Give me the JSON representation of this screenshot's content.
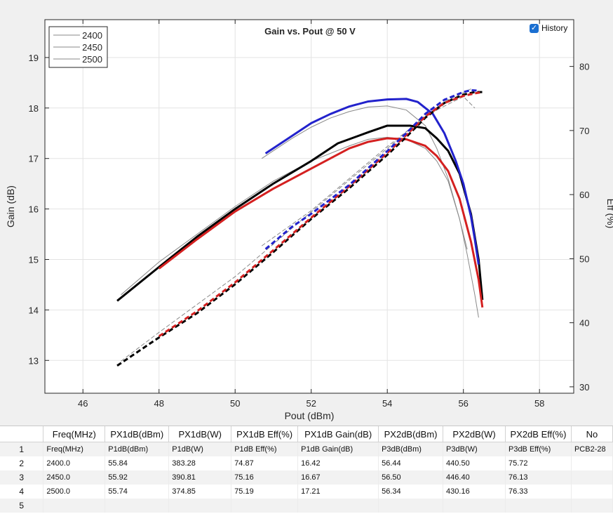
{
  "history": {
    "label": "History",
    "checked": true
  },
  "chart_data": {
    "type": "line",
    "title": "Gain vs. Pout @ 50 V",
    "xlabel": "Pout (dBm)",
    "ylabel": "Gain (dB)",
    "y2label": "Eff (%)",
    "xlim": [
      45,
      58.9
    ],
    "ylim": [
      12.35,
      19.75
    ],
    "y2lim": [
      29,
      87.3
    ],
    "xticks": [
      46,
      48,
      50,
      52,
      54,
      56,
      58
    ],
    "yticks": [
      13,
      14,
      15,
      16,
      17,
      18,
      19
    ],
    "y2ticks": [
      30,
      40,
      50,
      60,
      70,
      80
    ],
    "legend": {
      "position": "top-left",
      "entries": [
        "2400",
        "2450",
        "2500"
      ]
    },
    "grid": true,
    "colors": {
      "2400": "#000000",
      "2450": "#d42020",
      "2500": "#2222cc",
      "history": "#888888"
    },
    "series": [
      {
        "name": "2400",
        "axis": "left",
        "style": "solid",
        "x": [
          46.9,
          48.0,
          49.0,
          50.0,
          51.0,
          52.0,
          52.7,
          53.5,
          54.0,
          54.6,
          55.0,
          55.3,
          55.6,
          55.9,
          56.2,
          56.4,
          56.5
        ],
        "y": [
          14.18,
          14.85,
          15.45,
          16.0,
          16.5,
          16.95,
          17.3,
          17.52,
          17.65,
          17.65,
          17.6,
          17.4,
          17.15,
          16.7,
          15.9,
          15.0,
          14.2
        ]
      },
      {
        "name": "2450",
        "axis": "left",
        "style": "solid",
        "x": [
          48.0,
          49.0,
          50.0,
          51.0,
          52.0,
          53.0,
          53.5,
          54.0,
          54.5,
          55.0,
          55.3,
          55.6,
          55.9,
          56.2,
          56.4,
          56.5
        ],
        "y": [
          14.82,
          15.4,
          15.95,
          16.4,
          16.8,
          17.2,
          17.33,
          17.4,
          17.38,
          17.25,
          17.05,
          16.75,
          16.2,
          15.35,
          14.6,
          14.05
        ]
      },
      {
        "name": "2500",
        "axis": "left",
        "style": "solid",
        "x": [
          50.8,
          51.5,
          52.0,
          52.5,
          53.0,
          53.5,
          54.0,
          54.5,
          54.8,
          55.2,
          55.5,
          55.8,
          56.0,
          56.2,
          56.3,
          56.4
        ],
        "y": [
          17.1,
          17.45,
          17.7,
          17.88,
          18.03,
          18.13,
          18.17,
          18.18,
          18.12,
          17.88,
          17.5,
          16.95,
          16.5,
          15.85,
          15.4,
          14.9
        ]
      },
      {
        "name": "2400 Eff",
        "axis": "right",
        "style": "dashed",
        "x": [
          46.9,
          48.0,
          49.0,
          50.0,
          51.0,
          52.0,
          53.0,
          54.0,
          54.5,
          55.0,
          55.5,
          56.0,
          56.3,
          56.5
        ],
        "y": [
          33.3,
          37.7,
          41.5,
          46.0,
          51.0,
          56.2,
          61.0,
          66.2,
          69.0,
          72.0,
          74.3,
          75.6,
          76.0,
          76.0
        ]
      },
      {
        "name": "2450 Eff",
        "axis": "right",
        "style": "dashed",
        "x": [
          48.0,
          49.0,
          50.0,
          51.0,
          52.0,
          53.0,
          54.0,
          54.5,
          55.0,
          55.5,
          56.0,
          56.3,
          56.5
        ],
        "y": [
          37.9,
          41.8,
          46.3,
          51.3,
          56.4,
          61.3,
          66.5,
          69.3,
          72.2,
          74.3,
          75.4,
          75.8,
          76.0
        ]
      },
      {
        "name": "2500 Eff",
        "axis": "right",
        "style": "dashed",
        "x": [
          50.8,
          51.5,
          52.0,
          53.0,
          54.0,
          54.5,
          55.0,
          55.5,
          56.0,
          56.2,
          56.4
        ],
        "y": [
          51.5,
          55.0,
          57.0,
          61.5,
          66.8,
          69.6,
          72.6,
          74.8,
          76.0,
          76.3,
          76.2
        ]
      }
    ],
    "history_series": [
      {
        "axis": "left",
        "x": [
          47.0,
          48.0,
          49.0,
          50.0,
          51.0,
          52.0,
          53.0,
          53.5,
          54.0,
          54.5,
          55.0,
          55.3,
          55.6,
          55.9,
          56.1,
          56.3,
          56.4
        ],
        "y": [
          14.3,
          14.95,
          15.5,
          16.05,
          16.55,
          16.95,
          17.25,
          17.38,
          17.42,
          17.38,
          17.2,
          16.95,
          16.55,
          15.8,
          15.1,
          14.3,
          13.85
        ]
      },
      {
        "axis": "left",
        "x": [
          50.7,
          51.5,
          52.0,
          52.5,
          53.0,
          53.5,
          54.0,
          54.5,
          55.0,
          55.3,
          55.6,
          55.9,
          56.1
        ],
        "y": [
          17.0,
          17.4,
          17.62,
          17.8,
          17.93,
          18.02,
          18.04,
          17.96,
          17.65,
          17.2,
          16.6,
          15.8,
          15.2
        ]
      },
      {
        "axis": "right",
        "dashed": true,
        "x": [
          47.0,
          48.0,
          50.0,
          52.0,
          54.0,
          55.0,
          56.0,
          56.3
        ],
        "y": [
          34.0,
          38.5,
          47.2,
          57.3,
          67.2,
          72.3,
          75.3,
          73.5
        ]
      },
      {
        "axis": "right",
        "dashed": true,
        "x": [
          50.7,
          52.0,
          54.0,
          55.5,
          56.2
        ],
        "y": [
          52.0,
          57.5,
          67.5,
          74.5,
          76.5
        ]
      }
    ]
  },
  "table": {
    "columns": [
      "",
      "Freq(MHz)",
      "PX1dB(dBm)",
      "PX1dB(W)",
      "PX1dB Eff(%)",
      "PX1dB Gain(dB)",
      "PX2dB(dBm)",
      "PX2dB(W)",
      "PX2dB Eff(%)",
      "No"
    ],
    "rows": [
      [
        "1",
        "Freq(MHz)",
        "P1dB(dBm)",
        "P1dB(W)",
        "P1dB Eff(%)",
        "P1dB Gain(dB)",
        "P3dB(dBm)",
        "P3dB(W)",
        "P3dB Eff(%)",
        "PCB2-28"
      ],
      [
        "2",
        "2400.0",
        "55.84",
        "383.28",
        "74.87",
        "16.42",
        "56.44",
        "440.50",
        "75.72",
        ""
      ],
      [
        "3",
        "2450.0",
        "55.92",
        "390.81",
        "75.16",
        "16.67",
        "56.50",
        "446.40",
        "76.13",
        ""
      ],
      [
        "4",
        "2500.0",
        "55.74",
        "374.85",
        "75.19",
        "17.21",
        "56.34",
        "430.16",
        "76.33",
        ""
      ],
      [
        "5",
        "",
        "",
        "",
        "",
        "",
        "",
        "",
        "",
        ""
      ]
    ]
  }
}
